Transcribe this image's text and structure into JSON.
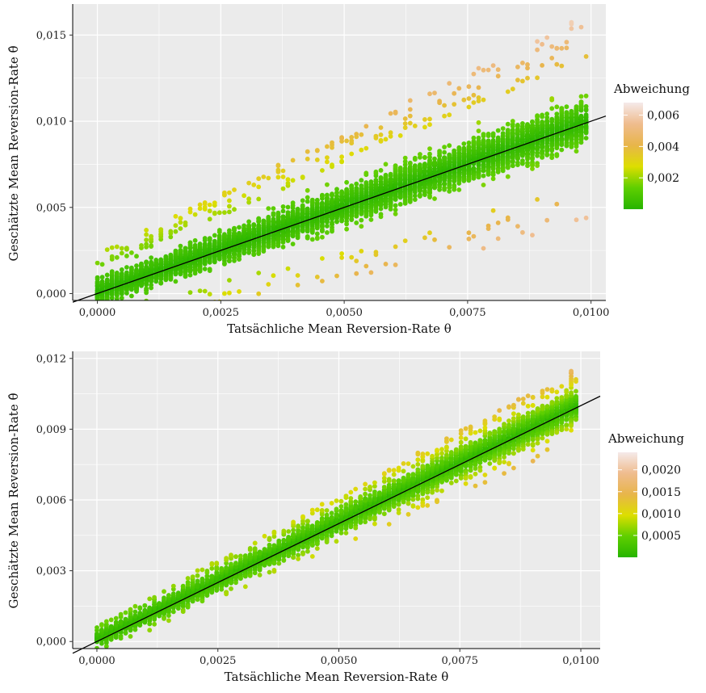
{
  "chart_data": [
    {
      "type": "scatter",
      "xlabel": "Tatsächliche Mean Reversion-Rate θ",
      "ylabel": "Geschätzte Mean Reversion-Rate θ̂",
      "xlim": [
        -0.0005,
        0.0103
      ],
      "ylim": [
        -0.0004,
        0.0168
      ],
      "x_ticks": [
        0,
        0.0025,
        0.005,
        0.0075,
        0.01
      ],
      "x_tick_labels": [
        "0,0000",
        "0,0025",
        "0,0050",
        "0,0075",
        "0,0100"
      ],
      "y_ticks": [
        0,
        0.005,
        0.01,
        0.015
      ],
      "y_tick_labels": [
        "0,000",
        "0,005",
        "0,010",
        "0,015"
      ],
      "grid": true,
      "reference_line": {
        "x": [
          -0.0005,
          0.0103
        ],
        "y": [
          -0.0005,
          0.0103
        ]
      },
      "legend": {
        "title": "Abweichung",
        "placement": "right",
        "range": [
          0,
          0.0068
        ],
        "ticks": [
          0.002,
          0.004,
          0.006
        ],
        "tick_labels": [
          "0,002",
          "0,004",
          "0,006"
        ],
        "colors": [
          "#27b400",
          "#5fcf00",
          "#ddde00",
          "#e8b54a",
          "#efbc8e",
          "#f5eaea"
        ]
      },
      "points": {
        "x_range": [
          0,
          0.0099
        ],
        "slope": 1.0,
        "intercept": 0.0001,
        "core_spread": [
          0.00055,
          0.0011
        ],
        "max_deviation": 0.0062
      }
    },
    {
      "type": "scatter",
      "xlabel": "Tatsächliche Mean Reversion-Rate θ",
      "ylabel": "Geschätzte Mean Reversion-Rate θ̂",
      "xlim": [
        -0.0005,
        0.0104
      ],
      "ylim": [
        -0.0003,
        0.0123
      ],
      "x_ticks": [
        0,
        0.0025,
        0.005,
        0.0075,
        0.01
      ],
      "x_tick_labels": [
        "0,0000",
        "0,0025",
        "0,0050",
        "0,0075",
        "0,0100"
      ],
      "y_ticks": [
        0,
        0.003,
        0.006,
        0.009,
        0.012
      ],
      "y_tick_labels": [
        "0,000",
        "0,003",
        "0,006",
        "0,009",
        "0,012"
      ],
      "grid": true,
      "reference_line": {
        "x": [
          -0.0005,
          0.0104
        ],
        "y": [
          -0.0005,
          0.0104
        ]
      },
      "legend": {
        "title": "Abweichung",
        "placement": "right",
        "range": [
          0,
          0.0024
        ],
        "ticks": [
          0.0005,
          0.001,
          0.0015,
          0.002
        ],
        "tick_labels": [
          "0,0005",
          "0,0010",
          "0,0015",
          "0,0020"
        ],
        "colors": [
          "#27b400",
          "#5fcf00",
          "#ddde00",
          "#e8b54a",
          "#efbc8e",
          "#f5eaea"
        ]
      },
      "points": {
        "x_range": [
          0,
          0.0099
        ],
        "slope": 1.0,
        "intercept": 0.0001,
        "core_spread": [
          0.0002,
          0.0006
        ],
        "max_deviation": 0.0016
      }
    }
  ]
}
